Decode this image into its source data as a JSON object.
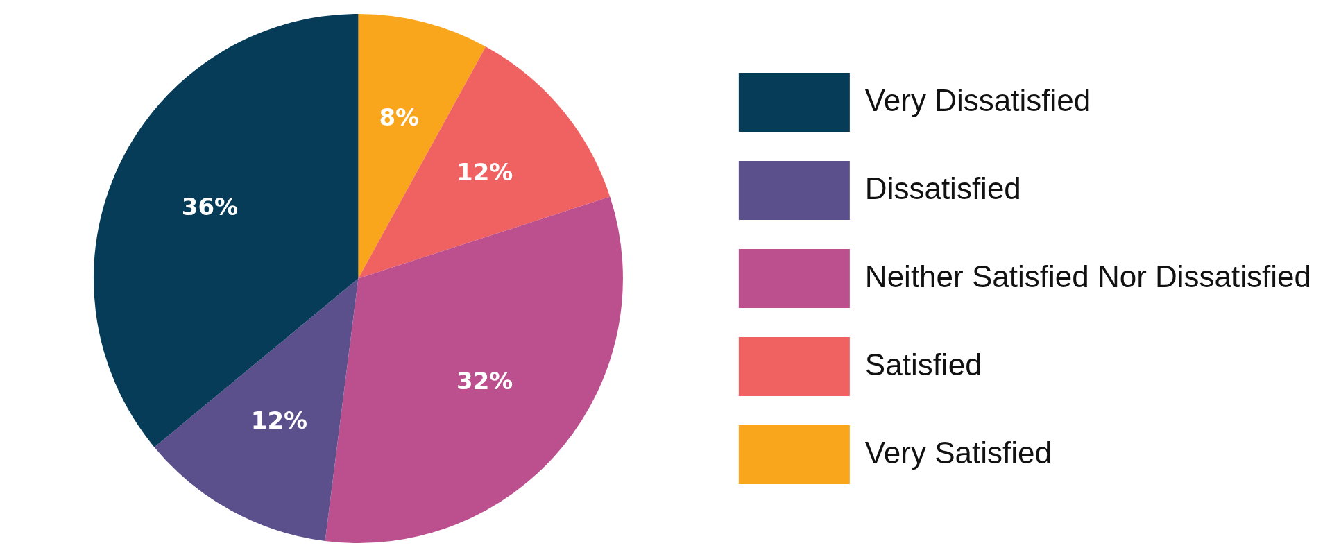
{
  "chart_data": {
    "type": "pie",
    "categories": [
      "Very Dissatisfied",
      "Dissatisfied",
      "Neither Satisfied Nor Dissatisfied",
      "Satisfied",
      "Very Satisfied"
    ],
    "values": [
      36,
      12,
      32,
      12,
      8
    ],
    "value_labels": [
      "36%",
      "12%",
      "32%",
      "12%",
      "8%"
    ],
    "colors": [
      "#073c59",
      "#5b508c",
      "#bc4f8e",
      "#f06262",
      "#f9a61c"
    ],
    "legend": "right"
  }
}
